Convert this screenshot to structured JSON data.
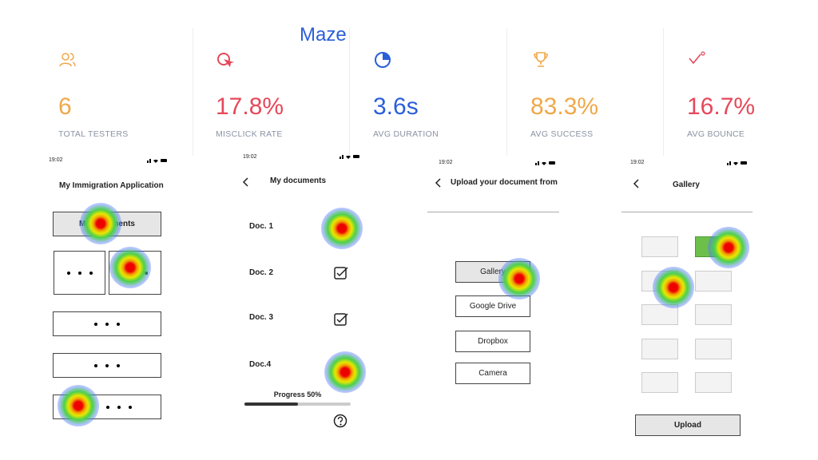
{
  "header": {
    "title": "Maze"
  },
  "metrics": [
    {
      "value": "6",
      "label": "TOTAL TESTERS"
    },
    {
      "value": "17.8%",
      "label": "MISCLICK RATE"
    },
    {
      "value": "3.6s",
      "label": "AVG DURATION"
    },
    {
      "value": "83.3%",
      "label": "AVG SUCCESS"
    },
    {
      "value": "16.7%",
      "label": "AVG BOUNCE"
    }
  ],
  "screens": [
    {
      "time": "19:02",
      "title": "My Immigration Application",
      "button": "My documents"
    },
    {
      "time": "19:02",
      "title": "My documents",
      "documents": [
        "Doc. 1",
        "Doc. 2",
        "Doc. 3",
        "Doc.4"
      ],
      "progress": "Progress 50%"
    },
    {
      "time": "19:02",
      "title": "Upload your document from",
      "options": [
        "Gallery",
        "Google Drive",
        "Dropbox",
        "Camera"
      ]
    },
    {
      "time": "19:02",
      "title": "Gallery",
      "button": "Upload"
    }
  ]
}
